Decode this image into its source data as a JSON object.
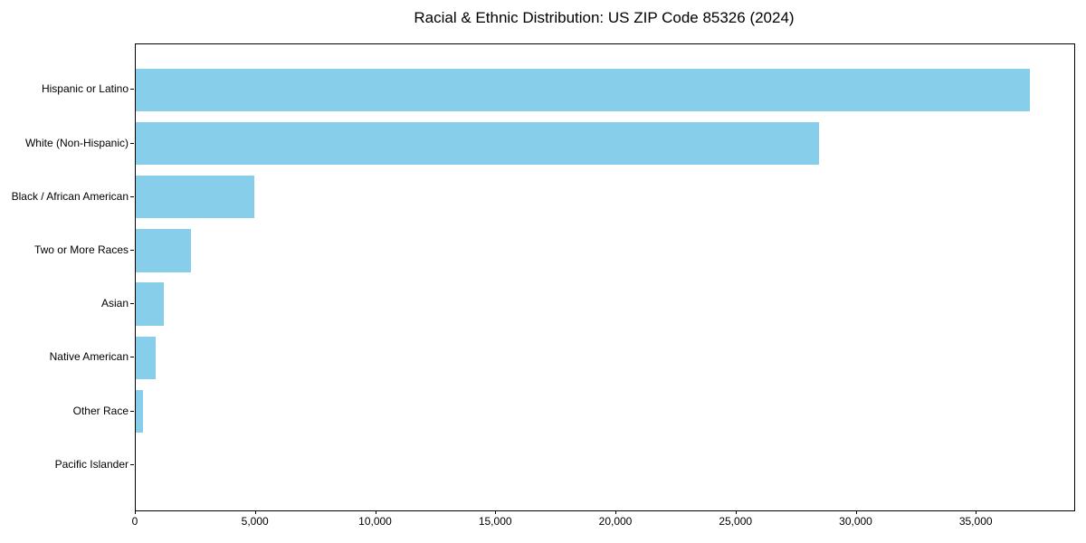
{
  "title": "Racial & Ethnic Distribution: US ZIP Code 85326 (2024)",
  "chart_data": {
    "type": "bar",
    "orientation": "horizontal",
    "title": "Racial & Ethnic Distribution: US ZIP Code 85326 (2024)",
    "xlabel": "",
    "ylabel": "",
    "categories": [
      "Hispanic or Latino",
      "White (Non-Hispanic)",
      "Black / African American",
      "Two or More Races",
      "Asian",
      "Native American",
      "Other Race",
      "Pacific Islander"
    ],
    "values": [
      37200,
      28450,
      4950,
      2300,
      1170,
      830,
      300,
      0
    ],
    "xlim": [
      0,
      39060
    ],
    "xticks": {
      "values": [
        0,
        5000,
        10000,
        15000,
        20000,
        25000,
        30000,
        35000
      ],
      "labels": [
        "0",
        "5,000",
        "10,000",
        "15,000",
        "20,000",
        "25,000",
        "30,000",
        "35,000"
      ]
    },
    "bar_color": "#87CEEB",
    "grid": false,
    "legend": null
  }
}
